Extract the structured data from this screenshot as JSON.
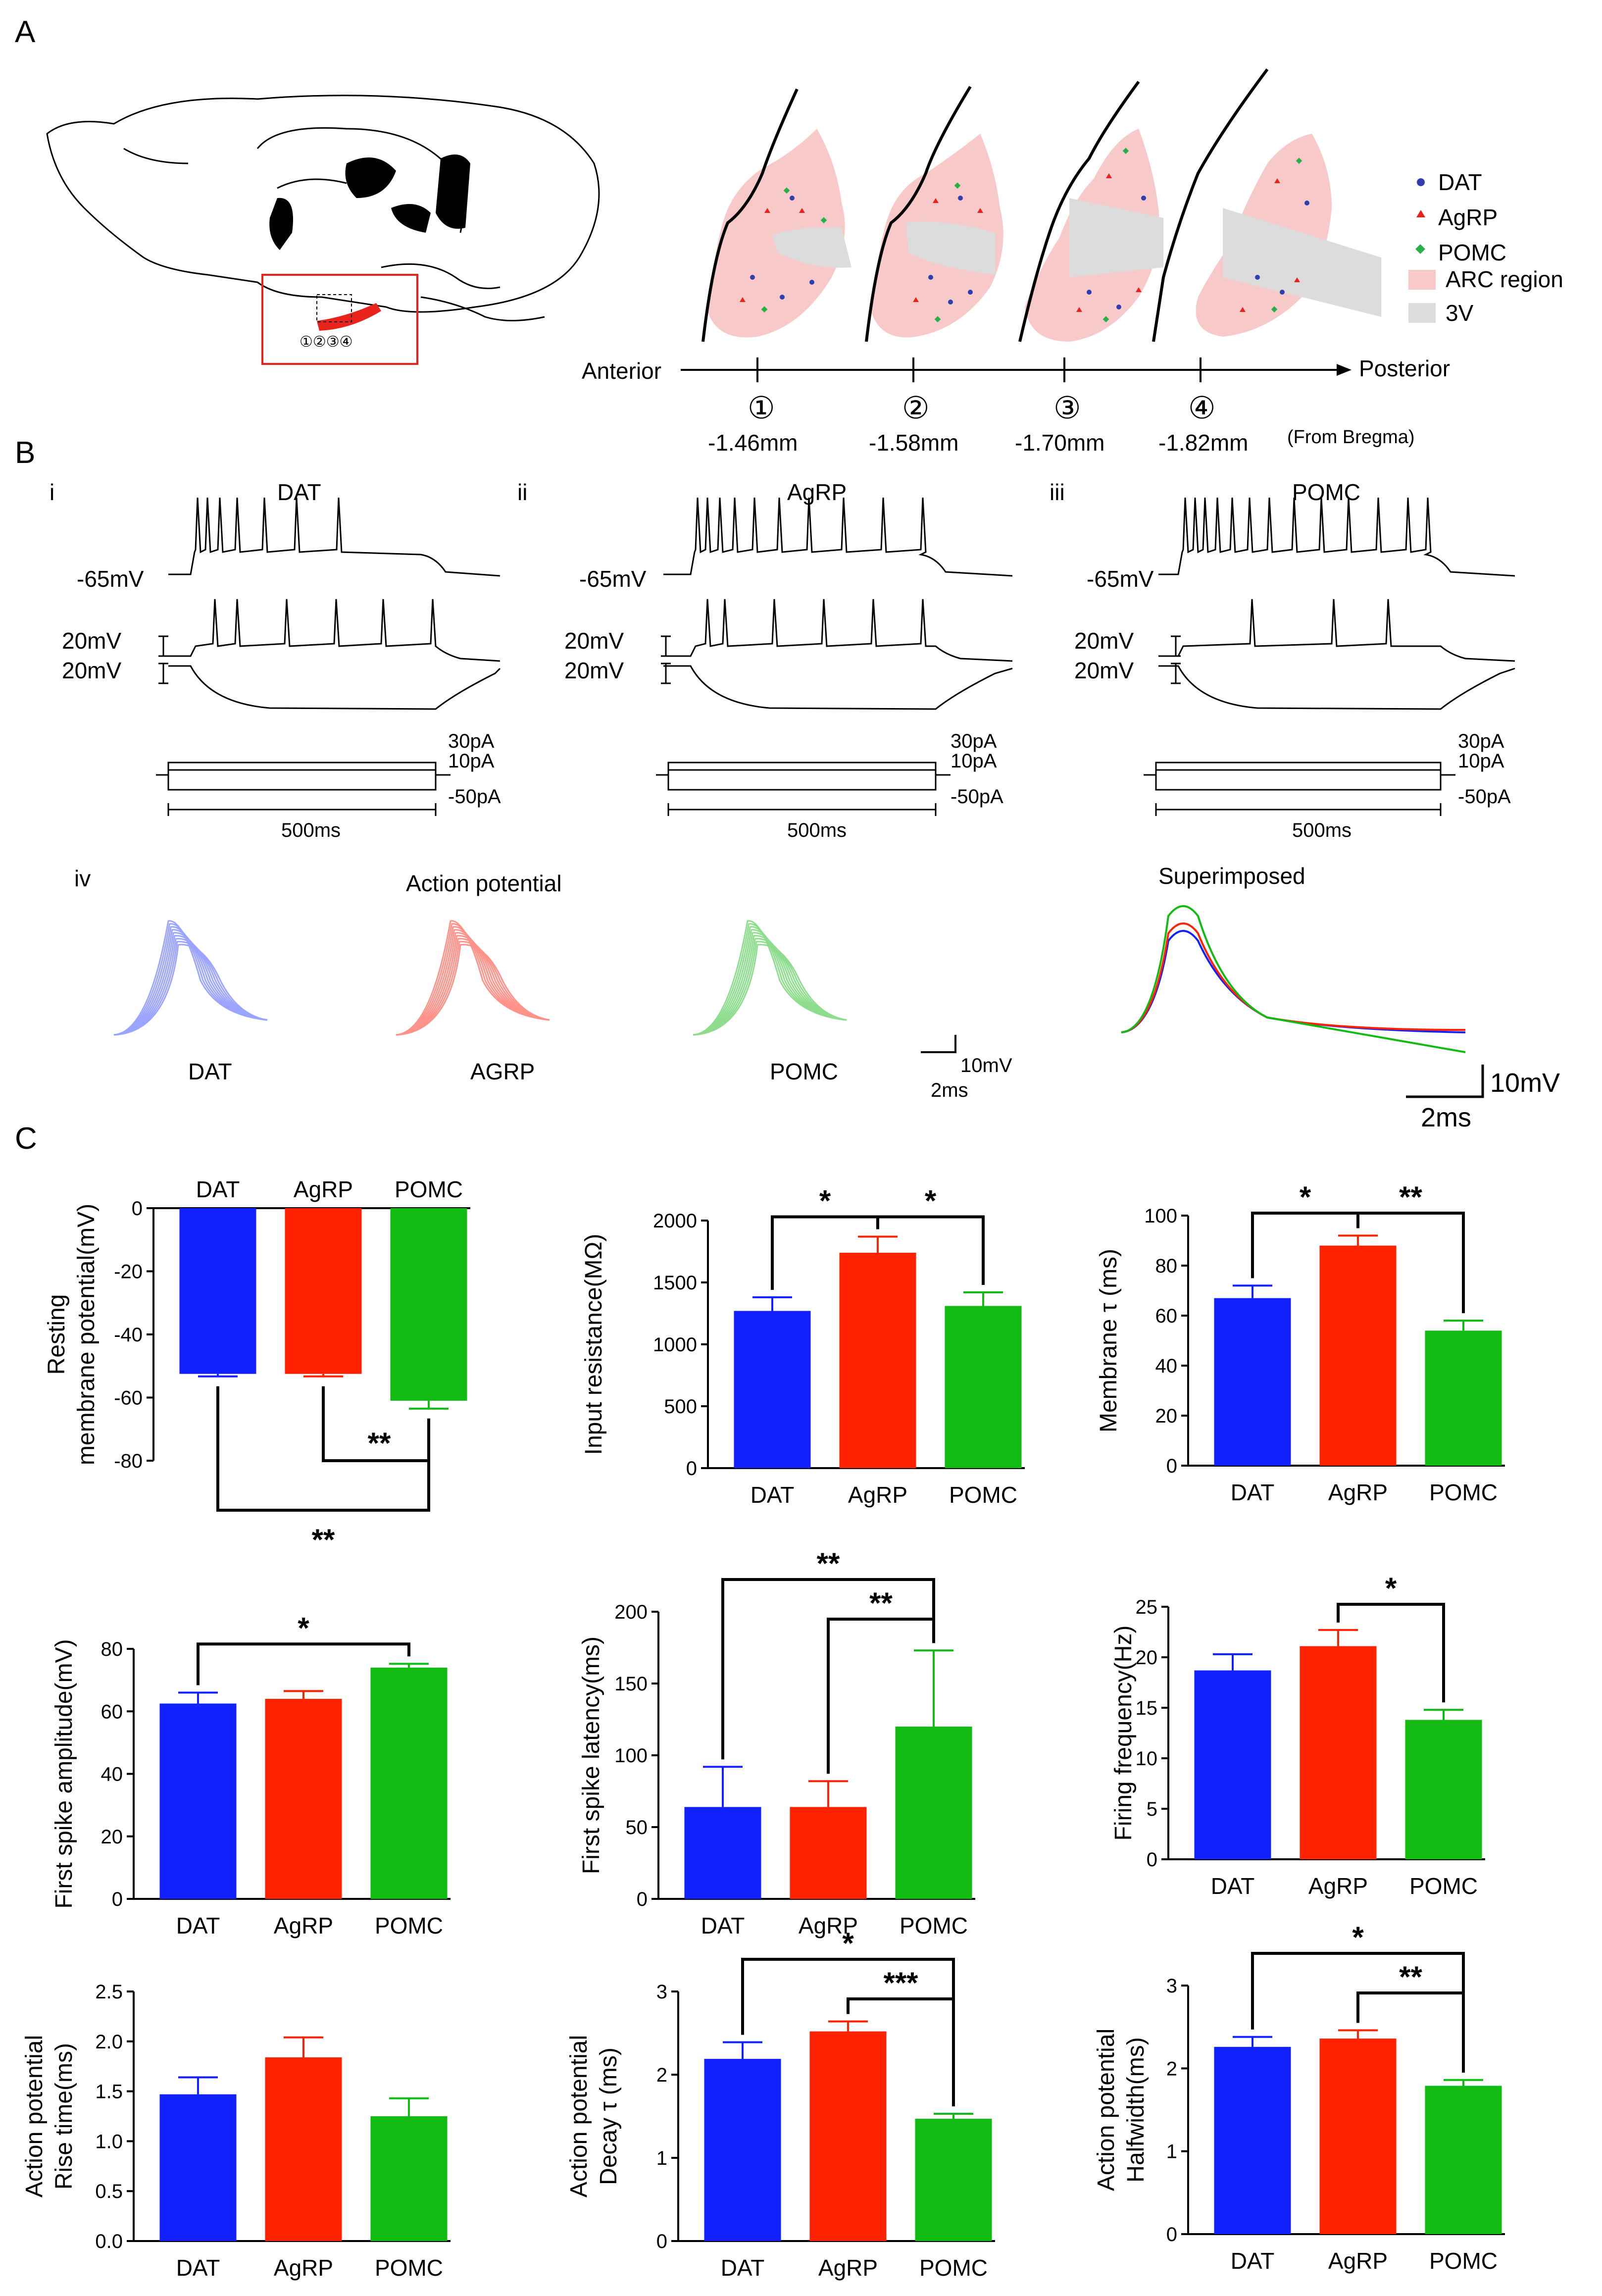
{
  "panel_labels": [
    "A",
    "B",
    "C"
  ],
  "panel_a": {
    "axis_start": "Anterior",
    "axis_end": "Posterior",
    "sections": [
      {
        "num": "①",
        "pos": "-1.46mm"
      },
      {
        "num": "②",
        "pos": "-1.58mm"
      },
      {
        "num": "③",
        "pos": "-1.70mm"
      },
      {
        "num": "④",
        "pos": "-1.82mm"
      }
    ],
    "reference_note": "(From Bregma)",
    "inset_numbers": "①②③④",
    "legend": [
      {
        "label": "DAT",
        "color": "#2f3fb0",
        "marker": "dot"
      },
      {
        "label": "AgRP",
        "color": "#e8231c",
        "marker": "triangle"
      },
      {
        "label": "POMC",
        "color": "#27b04a",
        "marker": "diamond"
      },
      {
        "label": "ARC region",
        "color": "#f8c9c9",
        "marker": "box"
      },
      {
        "label": "3V",
        "color": "#dcdcdc",
        "marker": "box"
      }
    ]
  },
  "panel_b": {
    "traces": [
      {
        "roman": "i",
        "title": "DAT",
        "rest": "-65mV",
        "scale1": "20mV",
        "scale2": "20mV",
        "currents": [
          "30pA",
          "10pA",
          "-50pA"
        ],
        "duration": "500ms"
      },
      {
        "roman": "ii",
        "title": "AgRP",
        "rest": "-65mV",
        "scale1": "20mV",
        "scale2": "20mV",
        "currents": [
          "30pA",
          "10pA",
          "-50pA"
        ],
        "duration": "500ms"
      },
      {
        "roman": "iii",
        "title": "POMC",
        "rest": "-65mV",
        "scale1": "20mV",
        "scale2": "20mV",
        "currents": [
          "30pA",
          "10pA",
          "-50pA"
        ],
        "duration": "500ms"
      }
    ],
    "iv": {
      "roman": "iv",
      "title_ap": "Action potential",
      "title_super": "Superimposed",
      "ap_labels": [
        "DAT",
        "AGRP",
        "POMC"
      ],
      "scale_small": {
        "v": "10mV",
        "t": "2ms"
      },
      "scale_large": {
        "v": "10mV",
        "t": "2ms"
      }
    }
  },
  "colors": {
    "DAT": "#1122ff",
    "AgRP": "#ff2200",
    "POMC": "#11bb11"
  },
  "chart_data": [
    {
      "type": "bar",
      "ylabel": [
        "Resting",
        "membrane potential(mV)"
      ],
      "categories": [
        "DAT",
        "AgRP",
        "POMC"
      ],
      "values": [
        -52.5,
        -52.5,
        -61
      ],
      "errors": [
        0.8,
        0.8,
        2.5
      ],
      "ylim": [
        -80,
        0
      ],
      "ticks": [
        0,
        -20,
        -40,
        -60,
        -80
      ],
      "cats_top": true,
      "sig": [
        {
          "label": "**",
          "pair": [
            0,
            2
          ]
        },
        {
          "label": "**",
          "pair": [
            1,
            2
          ]
        }
      ]
    },
    {
      "type": "bar",
      "ylabel": [
        "Input resistance(MΩ)"
      ],
      "categories": [
        "DAT",
        "AgRP",
        "POMC"
      ],
      "values": [
        1270,
        1740,
        1310
      ],
      "errors": [
        110,
        130,
        110
      ],
      "ylim": [
        0,
        2000
      ],
      "ticks": [
        0,
        500,
        1000,
        1500,
        2000
      ],
      "sig": [
        {
          "label": "*",
          "pair": [
            0,
            1
          ]
        },
        {
          "label": "*",
          "pair": [
            1,
            2
          ]
        }
      ]
    },
    {
      "type": "bar",
      "ylabel": [
        "Membrane τ (ms)"
      ],
      "categories": [
        "DAT",
        "AgRP",
        "POMC"
      ],
      "values": [
        67,
        88,
        54
      ],
      "errors": [
        5,
        4,
        4
      ],
      "ylim": [
        0,
        100
      ],
      "ticks": [
        0,
        20,
        40,
        60,
        80,
        100
      ],
      "sig": [
        {
          "label": "*",
          "pair": [
            0,
            1
          ]
        },
        {
          "label": "**",
          "pair": [
            1,
            2
          ]
        }
      ]
    },
    {
      "type": "bar",
      "ylabel": [
        "First spike amplitude(mV)"
      ],
      "categories": [
        "DAT",
        "AgRP",
        "POMC"
      ],
      "values": [
        62.5,
        64,
        74
      ],
      "errors": [
        3.5,
        2.5,
        1.2
      ],
      "ylim": [
        0,
        80
      ],
      "ticks": [
        0,
        20,
        40,
        60,
        80
      ],
      "sig": [
        {
          "label": "*",
          "pair": [
            0,
            2
          ]
        }
      ]
    },
    {
      "type": "bar",
      "ylabel": [
        "First spike latency(ms)"
      ],
      "categories": [
        "DAT",
        "AgRP",
        "POMC"
      ],
      "values": [
        64,
        64,
        120
      ],
      "errors": [
        28,
        18,
        53
      ],
      "ylim": [
        0,
        200
      ],
      "ticks": [
        0,
        50,
        100,
        150,
        200
      ],
      "sig": [
        {
          "label": "**",
          "pair": [
            0,
            2
          ]
        },
        {
          "label": "**",
          "pair": [
            1,
            2
          ]
        }
      ]
    },
    {
      "type": "bar",
      "ylabel": [
        "Firing frequency(Hz)"
      ],
      "categories": [
        "DAT",
        "AgRP",
        "POMC"
      ],
      "values": [
        18.7,
        21.1,
        13.8
      ],
      "errors": [
        1.6,
        1.6,
        1.0
      ],
      "ylim": [
        0,
        25
      ],
      "ticks": [
        0,
        5,
        10,
        15,
        20,
        25
      ],
      "sig": [
        {
          "label": "*",
          "pair": [
            1,
            2
          ]
        }
      ]
    },
    {
      "type": "bar",
      "ylabel": [
        "Action potential",
        "Rise time(ms)"
      ],
      "categories": [
        "DAT",
        "AgRP",
        "POMC"
      ],
      "values": [
        1.47,
        1.84,
        1.25
      ],
      "errors": [
        0.17,
        0.2,
        0.18
      ],
      "ylim": [
        0,
        2.5
      ],
      "ticks": [
        0,
        0.5,
        1.0,
        1.5,
        2.0,
        2.5
      ],
      "sig": []
    },
    {
      "type": "bar",
      "ylabel": [
        "Action potential",
        "Decay τ (ms)"
      ],
      "categories": [
        "DAT",
        "AgRP",
        "POMC"
      ],
      "values": [
        2.19,
        2.52,
        1.47
      ],
      "errors": [
        0.2,
        0.12,
        0.06
      ],
      "ylim": [
        0,
        3
      ],
      "ticks": [
        0,
        1,
        2,
        3
      ],
      "sig": [
        {
          "label": "*",
          "pair": [
            0,
            2
          ]
        },
        {
          "label": "***",
          "pair": [
            1,
            2
          ]
        }
      ]
    },
    {
      "type": "bar",
      "ylabel": [
        "Action potential",
        "Halfwidth(ms)"
      ],
      "categories": [
        "DAT",
        "AgRP",
        "POMC"
      ],
      "values": [
        2.26,
        2.36,
        1.79
      ],
      "errors": [
        0.12,
        0.1,
        0.07
      ],
      "ylim": [
        0,
        3
      ],
      "ticks": [
        0,
        1,
        2,
        3
      ],
      "sig": [
        {
          "label": "*",
          "pair": [
            0,
            2
          ]
        },
        {
          "label": "**",
          "pair": [
            1,
            2
          ]
        }
      ]
    }
  ]
}
